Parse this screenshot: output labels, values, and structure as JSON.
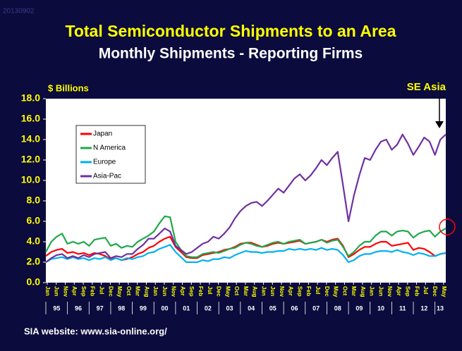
{
  "stamp": "20130902",
  "chart_data": {
    "type": "line",
    "title": "Total Semiconductor Shipments to an Area",
    "subtitle": "Monthly Shipments - Reporting Firms",
    "y_label": "$ Billions",
    "annotation": "SE Asia",
    "footer": "SIA website:  www.sia-online.org/",
    "legend": "upper left",
    "x": [
      "1995-01",
      "1995-04",
      "1995-07",
      "1995-10",
      "1996-01",
      "1996-04",
      "1996-07",
      "1996-10",
      "1997-01",
      "1997-04",
      "1997-07",
      "1997-10",
      "1998-01",
      "1998-04",
      "1998-07",
      "1998-10",
      "1999-01",
      "1999-04",
      "1999-07",
      "1999-10",
      "2000-01",
      "2000-04",
      "2000-07",
      "2000-10",
      "2001-01",
      "2001-04",
      "2001-07",
      "2001-10",
      "2002-01",
      "2002-04",
      "2002-07",
      "2002-10",
      "2003-01",
      "2003-04",
      "2003-07",
      "2003-10",
      "2004-01",
      "2004-04",
      "2004-07",
      "2004-10",
      "2005-01",
      "2005-04",
      "2005-07",
      "2005-10",
      "2006-01",
      "2006-04",
      "2006-07",
      "2006-10",
      "2007-01",
      "2007-04",
      "2007-07",
      "2007-10",
      "2008-01",
      "2008-04",
      "2008-07",
      "2008-10",
      "2009-01",
      "2009-04",
      "2009-07",
      "2009-10",
      "2010-01",
      "2010-04",
      "2010-07",
      "2010-10",
      "2011-01",
      "2011-04",
      "2011-07",
      "2011-10",
      "2012-01",
      "2012-04",
      "2012-07",
      "2012-10",
      "2013-01",
      "2013-04",
      "2013-07"
    ],
    "series": [
      {
        "name": "Japan",
        "color": "#ff0000",
        "values": [
          2.6,
          3.0,
          3.2,
          3.3,
          2.9,
          3.0,
          2.8,
          2.9,
          2.7,
          2.9,
          2.8,
          2.6,
          2.3,
          2.4,
          2.2,
          2.3,
          2.5,
          2.8,
          3.0,
          3.4,
          3.6,
          4.0,
          4.3,
          4.5,
          3.5,
          3.0,
          2.5,
          2.4,
          2.4,
          2.7,
          2.8,
          2.9,
          3.0,
          3.2,
          3.3,
          3.5,
          3.8,
          3.9,
          3.9,
          3.7,
          3.5,
          3.6,
          3.8,
          3.9,
          3.8,
          3.9,
          4.0,
          4.1,
          3.8,
          3.9,
          4.0,
          4.2,
          4.0,
          4.2,
          4.3,
          3.6,
          2.5,
          2.8,
          3.2,
          3.5,
          3.5,
          3.8,
          4.0,
          4.0,
          3.6,
          3.7,
          3.8,
          3.9,
          3.2,
          3.4,
          3.3,
          3.0,
          2.6,
          2.8,
          2.9
        ]
      },
      {
        "name": "N America",
        "color": "#1fa84a",
        "values": [
          3.0,
          4.0,
          4.5,
          4.8,
          3.8,
          4.0,
          3.8,
          4.0,
          3.6,
          4.2,
          4.3,
          4.4,
          3.6,
          3.8,
          3.4,
          3.6,
          3.5,
          4.0,
          4.3,
          4.6,
          5.0,
          5.8,
          6.5,
          6.4,
          4.0,
          3.2,
          2.6,
          2.5,
          2.5,
          2.8,
          2.9,
          3.0,
          2.9,
          3.1,
          3.3,
          3.4,
          3.7,
          3.9,
          3.8,
          3.6,
          3.5,
          3.7,
          3.9,
          4.0,
          3.8,
          4.0,
          4.1,
          4.2,
          3.8,
          3.9,
          4.0,
          4.2,
          3.9,
          4.1,
          4.2,
          3.5,
          2.6,
          3.0,
          3.6,
          4.0,
          4.0,
          4.6,
          5.0,
          5.0,
          4.6,
          5.0,
          5.1,
          5.0,
          4.4,
          4.8,
          5.0,
          5.1,
          4.5,
          5.0,
          5.3
        ]
      },
      {
        "name": "Europe",
        "color": "#00b0f0",
        "values": [
          2.0,
          2.3,
          2.4,
          2.5,
          2.3,
          2.5,
          2.3,
          2.4,
          2.2,
          2.4,
          2.3,
          2.5,
          2.2,
          2.4,
          2.2,
          2.4,
          2.3,
          2.5,
          2.6,
          2.9,
          3.0,
          3.3,
          3.5,
          3.7,
          3.0,
          2.5,
          2.0,
          2.0,
          2.0,
          2.2,
          2.1,
          2.3,
          2.3,
          2.5,
          2.4,
          2.7,
          2.9,
          3.1,
          3.0,
          3.0,
          2.9,
          3.0,
          3.0,
          3.1,
          3.1,
          3.3,
          3.2,
          3.3,
          3.2,
          3.3,
          3.2,
          3.4,
          3.2,
          3.3,
          3.2,
          2.7,
          2.0,
          2.2,
          2.6,
          2.8,
          2.8,
          3.0,
          3.1,
          3.1,
          3.0,
          3.2,
          3.0,
          2.9,
          2.7,
          2.9,
          2.8,
          2.6,
          2.6,
          2.8,
          2.9
        ]
      },
      {
        "name": "Asia-Pac",
        "color": "#7030a0",
        "values": [
          2.0,
          2.4,
          2.7,
          2.8,
          2.4,
          2.6,
          2.4,
          2.7,
          2.5,
          2.8,
          2.9,
          3.0,
          2.4,
          2.6,
          2.5,
          2.8,
          2.8,
          3.3,
          3.7,
          4.3,
          4.3,
          4.8,
          5.3,
          5.0,
          3.6,
          3.2,
          2.8,
          3.0,
          3.4,
          3.8,
          4.0,
          4.5,
          4.3,
          4.8,
          5.4,
          6.3,
          7.0,
          7.5,
          7.8,
          7.9,
          7.5,
          8.0,
          8.6,
          9.2,
          8.8,
          9.5,
          10.2,
          10.6,
          10.0,
          10.5,
          11.2,
          12.0,
          11.5,
          12.2,
          12.8,
          9.5,
          6.0,
          8.5,
          10.5,
          12.2,
          12.0,
          13.0,
          13.8,
          14.0,
          13.0,
          13.5,
          14.5,
          13.6,
          12.5,
          13.3,
          14.2,
          13.8,
          12.5,
          14.0,
          14.5
        ]
      }
    ],
    "xlim": [
      "1995-01",
      "2013-07"
    ],
    "xticks": [
      {
        "value": "1995-01",
        "label": "Jan"
      },
      {
        "value": "1995-06",
        "label": "Jun"
      },
      {
        "value": "1995-11",
        "label": "Nov"
      },
      {
        "value": "1996-04",
        "label": "Apr"
      },
      {
        "value": "1996-09",
        "label": "Sep"
      },
      {
        "value": "1997-02",
        "label": "Feb"
      },
      {
        "value": "1997-07",
        "label": "Jul"
      },
      {
        "value": "1997-12",
        "label": "Dec"
      },
      {
        "value": "1998-05",
        "label": "May"
      },
      {
        "value": "1998-10",
        "label": "Oct"
      },
      {
        "value": "1999-03",
        "label": "Mar"
      },
      {
        "value": "1999-08",
        "label": "Aug"
      },
      {
        "value": "2000-01",
        "label": "Jan"
      },
      {
        "value": "2000-06",
        "label": "Jun"
      },
      {
        "value": "2000-11",
        "label": "Nov"
      },
      {
        "value": "2001-04",
        "label": "Apr"
      },
      {
        "value": "2001-09",
        "label": "Sep"
      },
      {
        "value": "2002-02",
        "label": "Feb"
      },
      {
        "value": "2002-07",
        "label": "Jul"
      },
      {
        "value": "2002-12",
        "label": "Dec"
      },
      {
        "value": "2003-05",
        "label": "May"
      },
      {
        "value": "2003-10",
        "label": "Oct"
      },
      {
        "value": "2004-03",
        "label": "Mar"
      },
      {
        "value": "2004-08",
        "label": "Aug"
      },
      {
        "value": "2005-01",
        "label": "Jan"
      },
      {
        "value": "2005-06",
        "label": "Jun"
      },
      {
        "value": "2005-11",
        "label": "Nov"
      },
      {
        "value": "2006-04",
        "label": "Apr"
      },
      {
        "value": "2006-09",
        "label": "Sep"
      },
      {
        "value": "2007-02",
        "label": "Feb"
      },
      {
        "value": "2007-07",
        "label": "Jul"
      },
      {
        "value": "2007-12",
        "label": "Dec"
      },
      {
        "value": "2008-05",
        "label": "May"
      },
      {
        "value": "2008-10",
        "label": "Oct"
      },
      {
        "value": "2009-03",
        "label": "Mar"
      },
      {
        "value": "2009-08",
        "label": "Aug"
      },
      {
        "value": "2010-01",
        "label": "Jan"
      },
      {
        "value": "2010-06",
        "label": "Jun"
      },
      {
        "value": "2010-11",
        "label": "Nov"
      },
      {
        "value": "2011-04",
        "label": "Apr"
      },
      {
        "value": "2011-09",
        "label": "Sep"
      },
      {
        "value": "2012-02",
        "label": "Feb"
      },
      {
        "value": "2012-07",
        "label": "Jul"
      },
      {
        "value": "2012-12",
        "label": "Dec"
      },
      {
        "value": "2013-05",
        "label": "May"
      }
    ],
    "year_ticks": [
      {
        "value": "1995-01",
        "label": "95"
      },
      {
        "value": "1996-01",
        "label": "96"
      },
      {
        "value": "1997-01",
        "label": "97"
      },
      {
        "value": "1998-01",
        "label": "98"
      },
      {
        "value": "1999-01",
        "label": "99"
      },
      {
        "value": "2000-01",
        "label": "00"
      },
      {
        "value": "2001-01",
        "label": "01"
      },
      {
        "value": "2002-01",
        "label": "02"
      },
      {
        "value": "2003-01",
        "label": "03"
      },
      {
        "value": "2004-01",
        "label": "04"
      },
      {
        "value": "2005-01",
        "label": "05"
      },
      {
        "value": "2006-01",
        "label": "06"
      },
      {
        "value": "2007-01",
        "label": "07"
      },
      {
        "value": "2008-01",
        "label": "08"
      },
      {
        "value": "2009-01",
        "label": "09"
      },
      {
        "value": "2010-01",
        "label": "10"
      },
      {
        "value": "2011-01",
        "label": "11"
      },
      {
        "value": "2012-01",
        "label": "12"
      },
      {
        "value": "2013-01",
        "label": "13"
      }
    ],
    "ylim": [
      0,
      18
    ],
    "yticks": [
      {
        "value": 0,
        "label": "0.0"
      },
      {
        "value": 2,
        "label": "2.0"
      },
      {
        "value": 4,
        "label": "4.0"
      },
      {
        "value": 6,
        "label": "6.0"
      },
      {
        "value": 8,
        "label": "8.0"
      },
      {
        "value": 10,
        "label": "10.0"
      },
      {
        "value": 12,
        "label": "12.0"
      },
      {
        "value": 14,
        "label": "14.0"
      },
      {
        "value": 16,
        "label": "16.0"
      },
      {
        "value": 18,
        "label": "18.0"
      }
    ]
  }
}
